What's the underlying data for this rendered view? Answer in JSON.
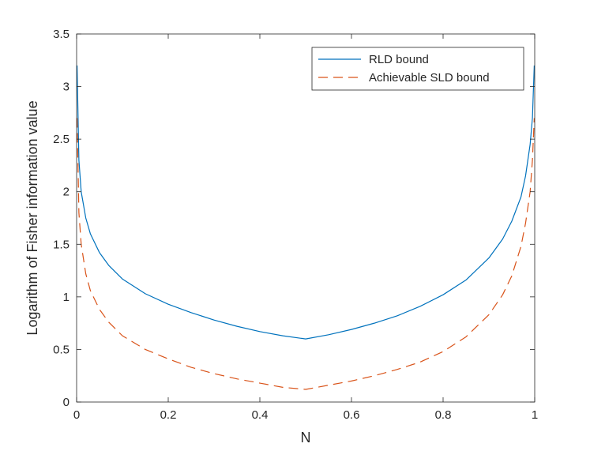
{
  "chart_data": {
    "type": "line",
    "title": "",
    "xlabel": "N",
    "ylabel": "Logarithm of Fisher information value",
    "xlim": [
      0,
      1
    ],
    "ylim": [
      0,
      3.5
    ],
    "xticks": [
      0,
      0.2,
      0.4,
      0.6,
      0.8,
      1
    ],
    "xtick_labels": [
      "0",
      "0.2",
      "0.4",
      "0.6",
      "0.8",
      "1"
    ],
    "yticks": [
      0,
      0.5,
      1,
      1.5,
      2,
      2.5,
      3,
      3.5
    ],
    "ytick_labels": [
      "0",
      "0.5",
      "1",
      "1.5",
      "2",
      "2.5",
      "3",
      "3.5"
    ],
    "grid": false,
    "legend_position": "top-right",
    "series": [
      {
        "name": "RLD bound",
        "color": "#0072BD",
        "style": "solid",
        "x": [
          0.001,
          0.005,
          0.01,
          0.02,
          0.03,
          0.05,
          0.07,
          0.1,
          0.15,
          0.2,
          0.25,
          0.3,
          0.35,
          0.4,
          0.45,
          0.5,
          0.55,
          0.6,
          0.65,
          0.7,
          0.75,
          0.8,
          0.85,
          0.9,
          0.93,
          0.95,
          0.97,
          0.98,
          0.99,
          0.995,
          0.999
        ],
        "y": [
          3.2,
          2.3,
          2.0,
          1.75,
          1.6,
          1.42,
          1.3,
          1.17,
          1.03,
          0.93,
          0.85,
          0.78,
          0.72,
          0.67,
          0.63,
          0.6,
          0.64,
          0.69,
          0.75,
          0.82,
          0.91,
          1.02,
          1.16,
          1.37,
          1.55,
          1.72,
          1.95,
          2.15,
          2.45,
          2.7,
          3.2
        ]
      },
      {
        "name": "Achievable SLD bound",
        "color": "#D95319",
        "style": "dashed",
        "x": [
          0.001,
          0.005,
          0.01,
          0.02,
          0.03,
          0.05,
          0.07,
          0.1,
          0.15,
          0.2,
          0.25,
          0.3,
          0.35,
          0.4,
          0.45,
          0.5,
          0.55,
          0.6,
          0.65,
          0.7,
          0.75,
          0.8,
          0.85,
          0.9,
          0.93,
          0.95,
          0.97,
          0.98,
          0.99,
          0.995,
          0.999
        ],
        "y": [
          2.7,
          1.8,
          1.5,
          1.22,
          1.06,
          0.88,
          0.76,
          0.63,
          0.5,
          0.41,
          0.33,
          0.27,
          0.22,
          0.18,
          0.14,
          0.12,
          0.16,
          0.2,
          0.25,
          0.31,
          0.38,
          0.48,
          0.62,
          0.83,
          1.02,
          1.2,
          1.48,
          1.7,
          2.0,
          2.3,
          2.7
        ]
      }
    ]
  }
}
